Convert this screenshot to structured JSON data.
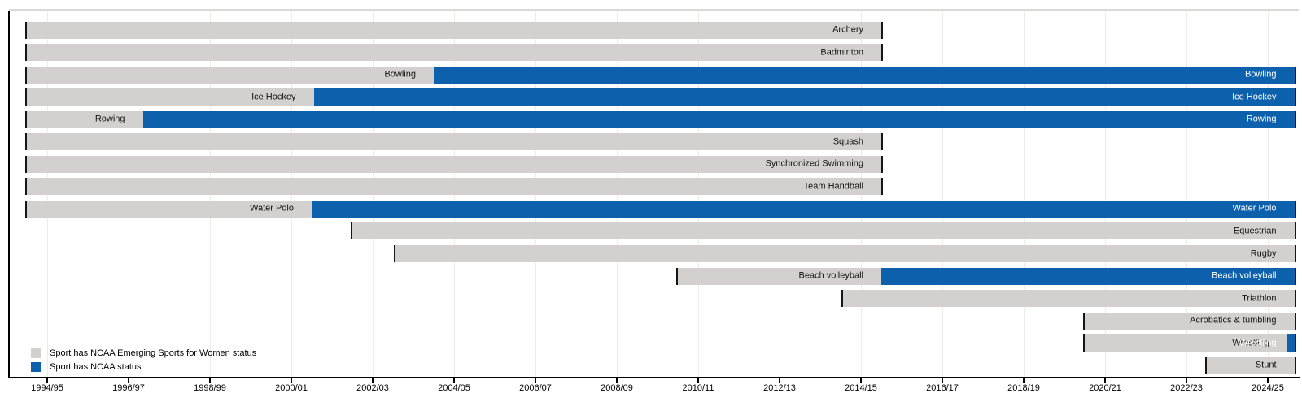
{
  "chart_data": {
    "type": "gantt",
    "title": "",
    "xlabel": "",
    "ylabel": "",
    "grid": true,
    "legend_position": "bottom-left",
    "x_axis": {
      "unit": "academic season",
      "range_start": 1994.0,
      "range_end": 2025.15,
      "ticks": [
        {
          "label": "1994/95",
          "year": 1994.5
        },
        {
          "label": "1996/97",
          "year": 1996.5
        },
        {
          "label": "1998/99",
          "year": 1998.5
        },
        {
          "label": "2000/01",
          "year": 2000.5
        },
        {
          "label": "2002/03",
          "year": 2002.5
        },
        {
          "label": "2004/05",
          "year": 2004.5
        },
        {
          "label": "2006/07",
          "year": 2006.5
        },
        {
          "label": "2008/09",
          "year": 2008.5
        },
        {
          "label": "2010/11",
          "year": 2010.5
        },
        {
          "label": "2012/13",
          "year": 2012.5
        },
        {
          "label": "2014/15",
          "year": 2014.5
        },
        {
          "label": "2016/17",
          "year": 2016.5
        },
        {
          "label": "2018/19",
          "year": 2018.5
        },
        {
          "label": "2020/21",
          "year": 2020.5
        },
        {
          "label": "2022/23",
          "year": 2022.5
        },
        {
          "label": "2024/25",
          "year": 2024.5
        }
      ]
    },
    "colors": {
      "emerging": "#d2d1cf",
      "ncaa": "#0d61ac"
    },
    "legend": [
      {
        "key": "emerging",
        "color": "#d2d1cf",
        "label": "Sport has NCAA Emerging Sports for Women status"
      },
      {
        "key": "ncaa",
        "color": "#0d61ac",
        "label": "Sport has NCAA status"
      }
    ],
    "rows": [
      {
        "sport": "Archery",
        "segments": [
          {
            "status": "emerging",
            "start": 1994.0,
            "end": 2015.0
          }
        ]
      },
      {
        "sport": "Badminton",
        "segments": [
          {
            "status": "emerging",
            "start": 1994.0,
            "end": 2015.0
          }
        ]
      },
      {
        "sport": "Bowling",
        "segments": [
          {
            "status": "emerging",
            "start": 1994.0,
            "end": 2004.0
          },
          {
            "status": "ncaa",
            "start": 2004.0,
            "end": 2025.15
          }
        ]
      },
      {
        "sport": "Ice Hockey",
        "segments": [
          {
            "status": "emerging",
            "start": 1994.0,
            "end": 2001.05
          },
          {
            "status": "ncaa",
            "start": 2001.05,
            "end": 2025.15
          }
        ]
      },
      {
        "sport": "Rowing",
        "segments": [
          {
            "status": "emerging",
            "start": 1994.0,
            "end": 1996.85
          },
          {
            "status": "ncaa",
            "start": 1996.85,
            "end": 2025.15
          }
        ]
      },
      {
        "sport": "Squash",
        "segments": [
          {
            "status": "emerging",
            "start": 1994.0,
            "end": 2015.0
          }
        ]
      },
      {
        "sport": "Synchronized Swimming",
        "segments": [
          {
            "status": "emerging",
            "start": 1994.0,
            "end": 2015.0
          }
        ]
      },
      {
        "sport": "Team Handball",
        "segments": [
          {
            "status": "emerging",
            "start": 1994.0,
            "end": 2015.0
          }
        ]
      },
      {
        "sport": "Water Polo",
        "segments": [
          {
            "status": "emerging",
            "start": 1994.0,
            "end": 2001.0
          },
          {
            "status": "ncaa",
            "start": 2001.0,
            "end": 2025.15
          }
        ]
      },
      {
        "sport": "Equestrian",
        "segments": [
          {
            "status": "emerging",
            "start": 2002.0,
            "end": 2025.15
          }
        ]
      },
      {
        "sport": "Rugby",
        "segments": [
          {
            "status": "emerging",
            "start": 2003.05,
            "end": 2025.15
          }
        ]
      },
      {
        "sport": "Beach volleyball",
        "segments": [
          {
            "status": "emerging",
            "start": 2010.0,
            "end": 2015.0
          },
          {
            "status": "ncaa",
            "start": 2015.0,
            "end": 2025.15
          }
        ]
      },
      {
        "sport": "Triathlon",
        "segments": [
          {
            "status": "emerging",
            "start": 2014.05,
            "end": 2025.15
          }
        ]
      },
      {
        "sport": "Acrobatics & tumbling",
        "segments": [
          {
            "status": "emerging",
            "start": 2020.0,
            "end": 2025.15
          }
        ]
      },
      {
        "sport": "Wrestling",
        "segments": [
          {
            "status": "emerging",
            "start": 2020.0,
            "end": 2024.98
          },
          {
            "status": "ncaa",
            "start": 2024.98,
            "end": 2025.15
          }
        ]
      },
      {
        "sport": "Stunt",
        "segments": [
          {
            "status": "emerging",
            "start": 2023.0,
            "end": 2025.15
          }
        ]
      }
    ]
  }
}
